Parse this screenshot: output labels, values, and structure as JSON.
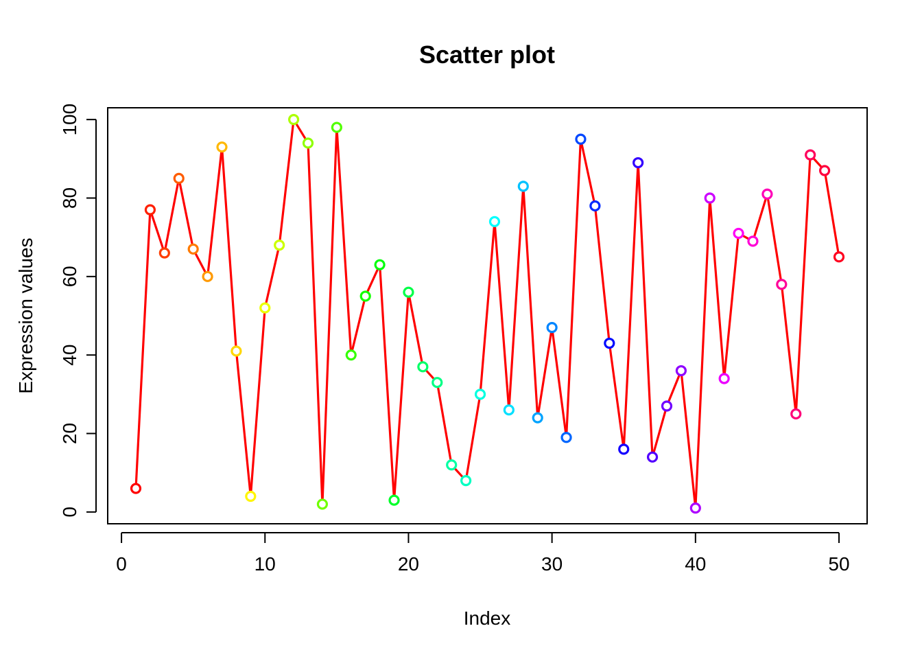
{
  "chart_data": {
    "type": "scatter",
    "title": "Scatter plot",
    "xlabel": "Index",
    "ylabel": "Expression values",
    "xlim": [
      -0.96,
      51.96
    ],
    "ylim": [
      -3,
      103
    ],
    "xticks": [
      0,
      10,
      20,
      30,
      40,
      50
    ],
    "yticks": [
      0,
      20,
      40,
      60,
      80,
      100
    ],
    "grid": false,
    "line_color": "#FF0000",
    "marker": "open-circle",
    "x": [
      1,
      2,
      3,
      4,
      5,
      6,
      7,
      8,
      9,
      10,
      11,
      12,
      13,
      14,
      15,
      16,
      17,
      18,
      19,
      20,
      21,
      22,
      23,
      24,
      25,
      26,
      27,
      28,
      29,
      30,
      31,
      32,
      33,
      34,
      35,
      36,
      37,
      38,
      39,
      40,
      41,
      42,
      43,
      44,
      45,
      46,
      47,
      48,
      49,
      50
    ],
    "y": [
      6,
      77,
      66,
      85,
      67,
      60,
      93,
      41,
      4,
      52,
      68,
      100,
      94,
      2,
      98,
      40,
      55,
      63,
      3,
      56,
      37,
      33,
      12,
      8,
      30,
      74,
      26,
      83,
      24,
      47,
      19,
      95,
      78,
      43,
      16,
      89,
      14,
      27,
      36,
      1,
      80,
      34,
      71,
      69,
      81,
      58,
      25,
      91,
      87,
      65
    ],
    "point_colors": [
      "#FF0000",
      "#FF1F00",
      "#FF3D00",
      "#FF5C00",
      "#FF7A00",
      "#FF9900",
      "#FFB800",
      "#FFD600",
      "#FFF500",
      "#EBFF00",
      "#CCFF00",
      "#ADFF00",
      "#8FFF00",
      "#70FF00",
      "#52FF00",
      "#33FF00",
      "#14FF00",
      "#00FF0A",
      "#00FF29",
      "#00FF47",
      "#00FF66",
      "#00FF85",
      "#00FFA3",
      "#00FFC2",
      "#00FFE0",
      "#00FFFF",
      "#00E0FF",
      "#00C2FF",
      "#00A3FF",
      "#0085FF",
      "#0066FF",
      "#0047FF",
      "#0029FF",
      "#000AFF",
      "#1400FF",
      "#3300FF",
      "#5200FF",
      "#7000FF",
      "#8F00FF",
      "#AD00FF",
      "#CC00FF",
      "#EB00FF",
      "#FF00F5",
      "#FF00D6",
      "#FF00B8",
      "#FF0099",
      "#FF007A",
      "#FF005C",
      "#FF003D",
      "#FF001F"
    ]
  }
}
